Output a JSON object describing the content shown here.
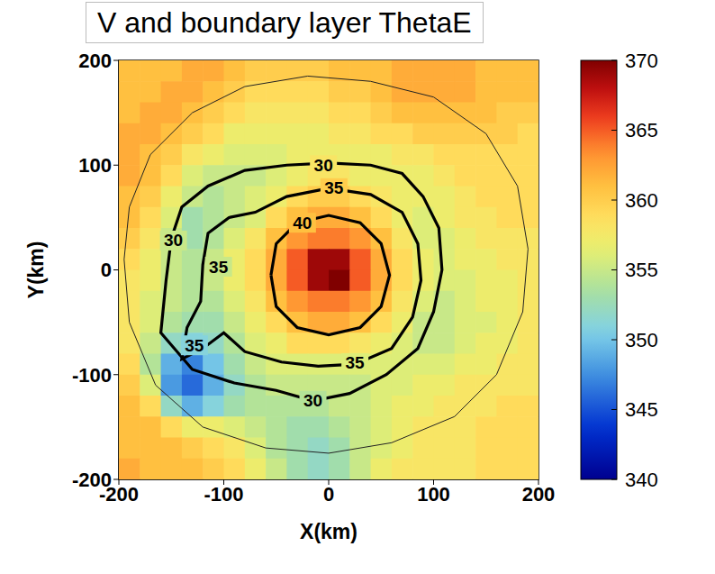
{
  "chart_data": {
    "type": "heatmap",
    "title": "V and boundary layer ThetaE",
    "x_label": "X(km)",
    "y_label": "Y(km)",
    "xlim": [
      -200,
      200
    ],
    "ylim": [
      -200,
      200
    ],
    "xticks": [
      -200,
      -100,
      0,
      100,
      200
    ],
    "yticks": [
      -200,
      -100,
      0,
      100,
      200
    ],
    "x": [
      -190,
      -170,
      -150,
      -130,
      -110,
      -90,
      -70,
      -50,
      -30,
      -10,
      10,
      30,
      50,
      70,
      90,
      110,
      130,
      150,
      170,
      190
    ],
    "y": [
      190,
      170,
      150,
      130,
      110,
      90,
      70,
      50,
      30,
      10,
      -10,
      -30,
      -50,
      -70,
      -90,
      -110,
      -130,
      -150,
      -170,
      -190
    ],
    "cells": [
      [
        361,
        361,
        361,
        362,
        362,
        361,
        360,
        360,
        360,
        360,
        361,
        361,
        361,
        362,
        362,
        362,
        362,
        361,
        361,
        361
      ],
      [
        361,
        361,
        362,
        362,
        361,
        360,
        359,
        359,
        359,
        359,
        360,
        360,
        361,
        362,
        362,
        362,
        362,
        361,
        361,
        361
      ],
      [
        361,
        362,
        362,
        361,
        360,
        359,
        358,
        358,
        358,
        358,
        359,
        359,
        360,
        361,
        361,
        361,
        361,
        361,
        360,
        360
      ],
      [
        362,
        362,
        361,
        360,
        359,
        357,
        357,
        357,
        357,
        357,
        358,
        358,
        359,
        359,
        360,
        360,
        360,
        360,
        360,
        359
      ],
      [
        362,
        361,
        360,
        358,
        357,
        356,
        356,
        356,
        357,
        357,
        357,
        357,
        357,
        358,
        358,
        359,
        359,
        359,
        359,
        359
      ],
      [
        362,
        361,
        359,
        356,
        355,
        355,
        355,
        356,
        357,
        358,
        358,
        357,
        357,
        357,
        357,
        358,
        359,
        359,
        359,
        359
      ],
      [
        361,
        360,
        357,
        355,
        354,
        355,
        356,
        357,
        359,
        360,
        360,
        359,
        358,
        357,
        357,
        357,
        358,
        359,
        359,
        359
      ],
      [
        361,
        359,
        356,
        353,
        354,
        355,
        356,
        359,
        361,
        362,
        362,
        361,
        359,
        357,
        356,
        357,
        358,
        358,
        359,
        359
      ],
      [
        360,
        358,
        355,
        353,
        354,
        356,
        358,
        361,
        363,
        364,
        364,
        363,
        361,
        358,
        356,
        356,
        357,
        358,
        358,
        358
      ],
      [
        359,
        357,
        355,
        354,
        355,
        357,
        359,
        362,
        365,
        369,
        369,
        365,
        362,
        359,
        357,
        356,
        357,
        357,
        358,
        358
      ],
      [
        358,
        357,
        355,
        354,
        355,
        357,
        359,
        362,
        365,
        369,
        370,
        365,
        362,
        359,
        357,
        356,
        356,
        357,
        357,
        358
      ],
      [
        358,
        356,
        355,
        354,
        354,
        356,
        358,
        361,
        363,
        364,
        364,
        363,
        361,
        358,
        356,
        355,
        356,
        357,
        357,
        358
      ],
      [
        358,
        356,
        354,
        353,
        353,
        355,
        357,
        359,
        361,
        362,
        362,
        361,
        359,
        357,
        355,
        355,
        356,
        356,
        357,
        358
      ],
      [
        358,
        355,
        352,
        351,
        352,
        354,
        356,
        357,
        359,
        359,
        359,
        358,
        357,
        356,
        355,
        355,
        356,
        357,
        357,
        358
      ],
      [
        359,
        354,
        349,
        347,
        350,
        353,
        355,
        356,
        356,
        356,
        356,
        356,
        356,
        356,
        356,
        356,
        357,
        357,
        358,
        358
      ],
      [
        360,
        356,
        348,
        346,
        349,
        352,
        354,
        355,
        355,
        355,
        355,
        355,
        356,
        356,
        357,
        357,
        358,
        358,
        358,
        358
      ],
      [
        361,
        359,
        352,
        349,
        351,
        353,
        354,
        354,
        354,
        354,
        355,
        355,
        356,
        357,
        357,
        358,
        358,
        358,
        359,
        359
      ],
      [
        361,
        361,
        359,
        357,
        357,
        356,
        355,
        354,
        353,
        353,
        354,
        355,
        356,
        357,
        358,
        358,
        358,
        359,
        359,
        359
      ],
      [
        361,
        361,
        361,
        360,
        359,
        358,
        356,
        354,
        353,
        352,
        353,
        355,
        356,
        357,
        358,
        358,
        358,
        359,
        359,
        359
      ],
      [
        362,
        361,
        361,
        361,
        360,
        359,
        357,
        355,
        353,
        352,
        353,
        355,
        357,
        358,
        358,
        358,
        358,
        359,
        359,
        359
      ]
    ],
    "colorbar_range": [
      340,
      370
    ],
    "colorbar_ticks": [
      340,
      345,
      350,
      355,
      360,
      365,
      370
    ],
    "contours": [
      {
        "level": 30,
        "points": [
          [
            -155,
            -10
          ],
          [
            -150,
            30
          ],
          [
            -140,
            60
          ],
          [
            -115,
            80
          ],
          [
            -80,
            95
          ],
          [
            -40,
            100
          ],
          [
            0,
            102
          ],
          [
            40,
            100
          ],
          [
            70,
            92
          ],
          [
            90,
            70
          ],
          [
            105,
            40
          ],
          [
            108,
            0
          ],
          [
            100,
            -40
          ],
          [
            85,
            -75
          ],
          [
            55,
            -100
          ],
          [
            20,
            -118
          ],
          [
            -15,
            -125
          ],
          [
            -50,
            -115
          ],
          [
            -90,
            -108
          ],
          [
            -130,
            -95
          ],
          [
            -160,
            -60
          ],
          [
            -155,
            -10
          ]
        ],
        "label_at": [
          [
            -148,
            28
          ],
          [
            -5,
            100
          ],
          [
            -15,
            -125
          ]
        ]
      },
      {
        "level": 35,
        "points": [
          [
            -120,
            5
          ],
          [
            -115,
            35
          ],
          [
            -95,
            50
          ],
          [
            -70,
            55
          ],
          [
            -40,
            70
          ],
          [
            0,
            78
          ],
          [
            40,
            72
          ],
          [
            70,
            55
          ],
          [
            85,
            25
          ],
          [
            88,
            -10
          ],
          [
            80,
            -45
          ],
          [
            60,
            -75
          ],
          [
            25,
            -90
          ],
          [
            -10,
            -92
          ],
          [
            -45,
            -88
          ],
          [
            -80,
            -78
          ],
          [
            -100,
            -60
          ],
          [
            -120,
            -75
          ],
          [
            -140,
            -85
          ],
          [
            -135,
            -55
          ],
          [
            -122,
            -30
          ],
          [
            -120,
            5
          ]
        ],
        "label_at": [
          [
            5,
            78
          ],
          [
            -105,
            3
          ],
          [
            -128,
            -72
          ],
          [
            25,
            -89
          ]
        ]
      },
      {
        "level": 40,
        "points": [
          [
            -55,
            -5
          ],
          [
            -50,
            25
          ],
          [
            -30,
            45
          ],
          [
            0,
            52
          ],
          [
            30,
            45
          ],
          [
            50,
            25
          ],
          [
            58,
            -5
          ],
          [
            50,
            -35
          ],
          [
            30,
            -55
          ],
          [
            0,
            -62
          ],
          [
            -30,
            -55
          ],
          [
            -50,
            -35
          ],
          [
            -55,
            -5
          ]
        ],
        "label_at": [
          [
            -25,
            45
          ]
        ]
      }
    ],
    "thin_contours": [
      {
        "points": [
          [
            -190,
            60
          ],
          [
            -170,
            110
          ],
          [
            -130,
            150
          ],
          [
            -80,
            175
          ],
          [
            -20,
            185
          ],
          [
            40,
            180
          ],
          [
            100,
            165
          ],
          [
            150,
            130
          ],
          [
            180,
            80
          ],
          [
            190,
            20
          ],
          [
            185,
            -40
          ],
          [
            160,
            -100
          ],
          [
            120,
            -140
          ],
          [
            60,
            -165
          ],
          [
            0,
            -175
          ],
          [
            -60,
            -170
          ],
          [
            -120,
            -150
          ],
          [
            -165,
            -110
          ],
          [
            -190,
            -50
          ],
          [
            -195,
            10
          ],
          [
            -190,
            60
          ]
        ]
      }
    ]
  }
}
